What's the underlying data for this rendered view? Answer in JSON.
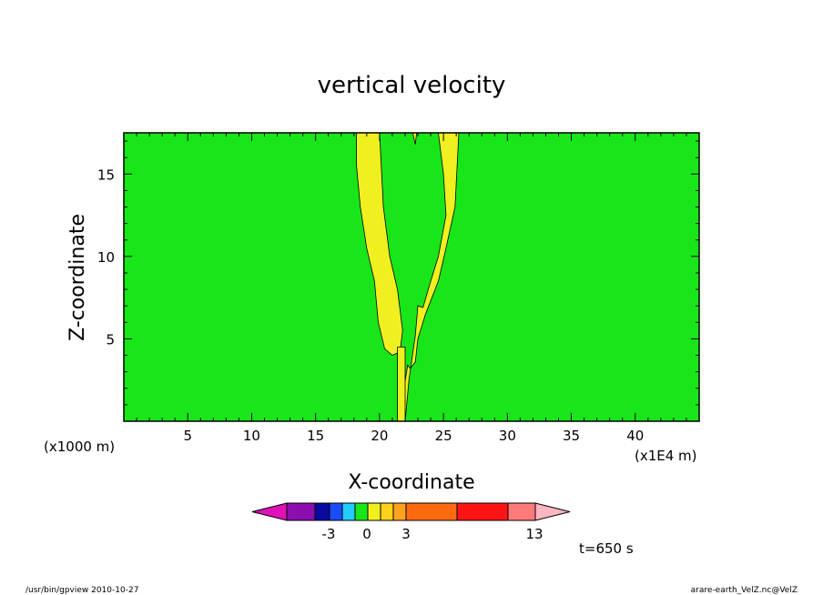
{
  "chart_data": {
    "type": "heatmap",
    "title": "vertical velocity",
    "xlabel": "X-coordinate",
    "ylabel": "Z-coordinate",
    "x_units_left": "(x1000 m)",
    "x_units_right": "(x1E4 m)",
    "xlim": [
      0,
      45
    ],
    "ylim": [
      0,
      17.5
    ],
    "x_ticks": [
      5,
      10,
      15,
      20,
      25,
      30,
      35,
      40
    ],
    "y_ticks": [
      5,
      10,
      15
    ],
    "background_level": "0 to 1 (green)",
    "features": [
      {
        "name": "left plume band",
        "level": "1 to 2 (yellow)",
        "x_range_top": [
          18.2,
          19.9
        ],
        "x_range_bottom": [
          19.9,
          21.8
        ],
        "z_range": [
          3.8,
          17.5
        ]
      },
      {
        "name": "right plume band",
        "level": "1 to 2 (yellow)",
        "x_range_top": [
          24.6,
          26.2
        ],
        "x_range_bottom": [
          21.4,
          23.1
        ],
        "z_range": [
          0,
          17.5
        ]
      },
      {
        "name": "central column",
        "level": "1 to 2 (yellow)",
        "x_range": [
          21.4,
          22.0
        ],
        "z_range": [
          0,
          4.5
        ]
      }
    ],
    "colorbar": {
      "labels": [
        "-3",
        "0",
        "3",
        "13"
      ],
      "colors": [
        "#e011b7",
        "#8a0fae",
        "#0a0aa0",
        "#1a4cff",
        "#22ccff",
        "#19e619",
        "#f0f020",
        "#ffd21e",
        "#ffa31e",
        "#ff6a10",
        "#ff1414",
        "#ff7a7a",
        "#ffb6c1"
      ]
    },
    "time_label": "t=650 s"
  },
  "footer": {
    "left": "/usr/bin/gpview   2010-10-27",
    "right": "arare-earth_VelZ.nc@VelZ"
  }
}
